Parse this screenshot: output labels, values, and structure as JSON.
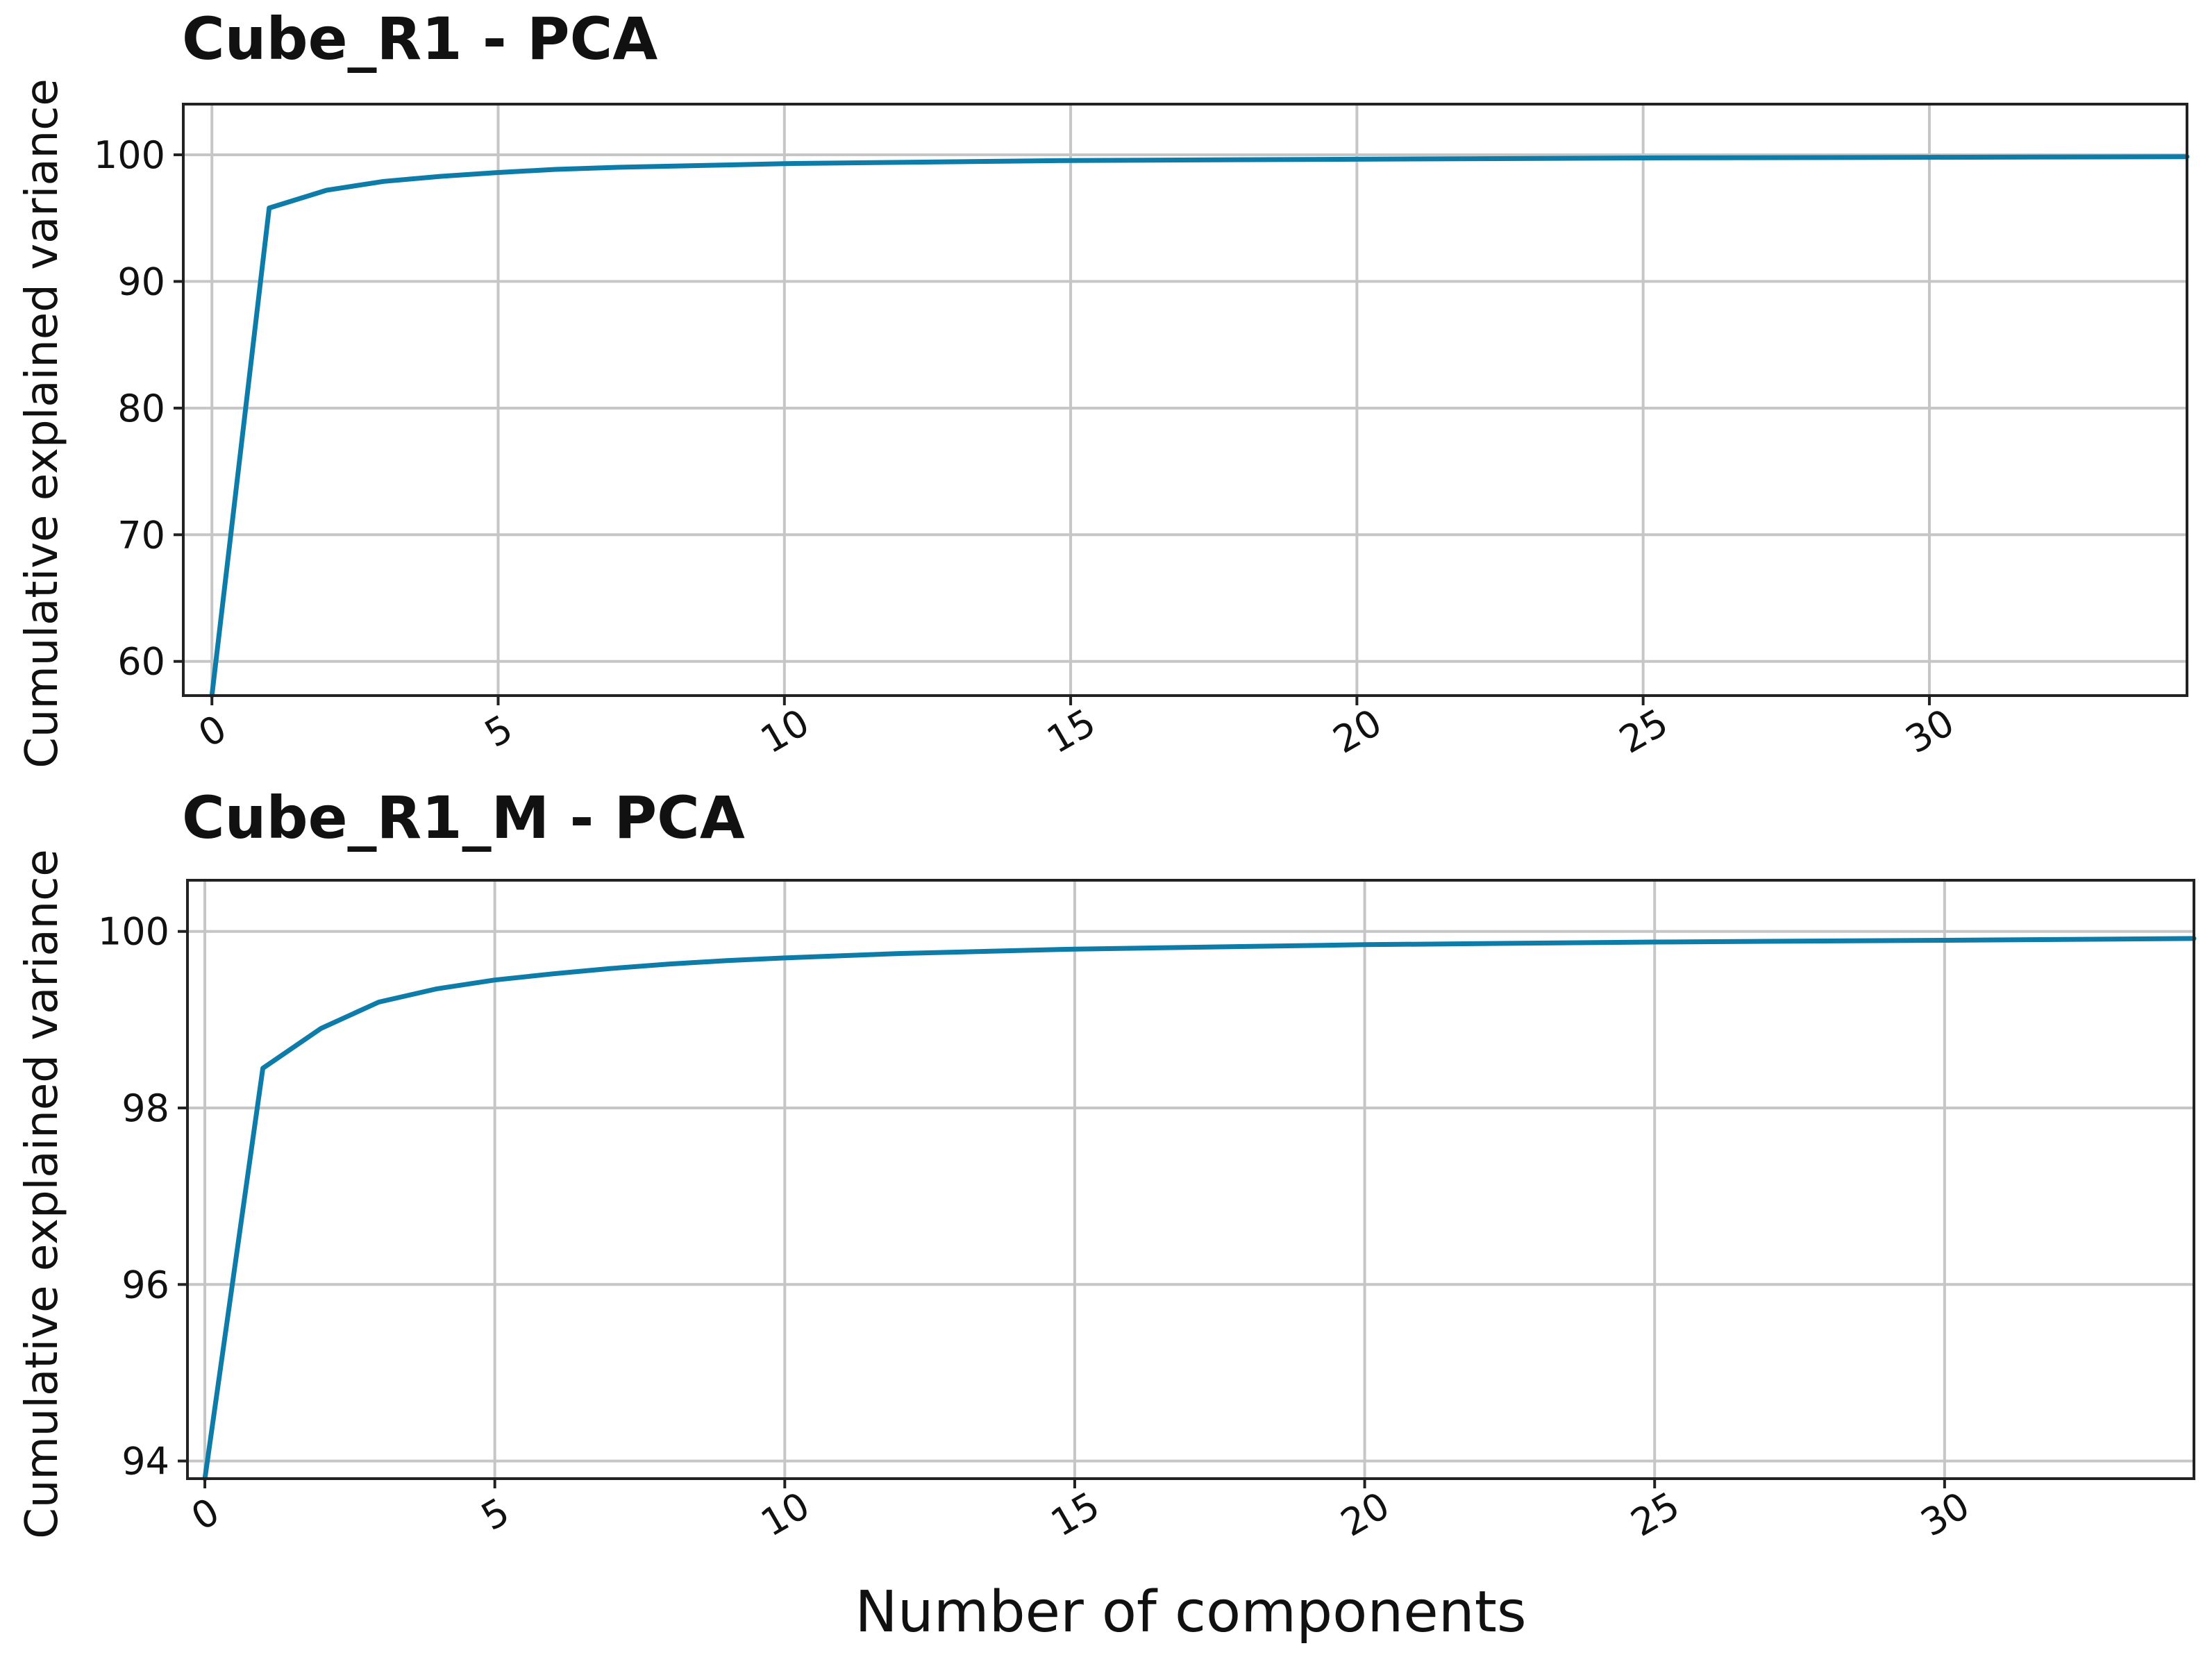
{
  "figure": {
    "xlabel": "Number of components"
  },
  "chart_data": [
    {
      "type": "line",
      "title": "Cube_R1 - PCA",
      "xlabel": "",
      "ylabel": "Cumulative explained variance",
      "xlim": [
        -0.5,
        34.5
      ],
      "ylim": [
        57.3,
        104
      ],
      "grid": true,
      "xticks": [
        0,
        5,
        10,
        15,
        20,
        25,
        30
      ],
      "yticks": [
        60,
        70,
        80,
        90,
        100
      ],
      "color": "#0e7ca8",
      "series": [
        {
          "name": "Cube_R1",
          "x": [
            0,
            1,
            2,
            3,
            4,
            5,
            6,
            7,
            8,
            9,
            10,
            12,
            15,
            20,
            25,
            30,
            34.5
          ],
          "y": [
            57.3,
            95.8,
            97.2,
            97.9,
            98.3,
            98.6,
            98.85,
            99.0,
            99.1,
            99.2,
            99.3,
            99.4,
            99.55,
            99.65,
            99.75,
            99.8,
            99.85
          ]
        }
      ]
    },
    {
      "type": "line",
      "title": "Cube_R1_M - PCA",
      "xlabel": "Number of components",
      "ylabel": "Cumulative explained variance",
      "xlim": [
        -0.3,
        34.3
      ],
      "ylim": [
        93.8,
        100.58
      ],
      "grid": true,
      "xticks": [
        0,
        5,
        10,
        15,
        20,
        25,
        30
      ],
      "yticks": [
        94,
        96,
        98,
        100
      ],
      "color": "#0e7ca8",
      "series": [
        {
          "name": "Cube_R1_M",
          "x": [
            0,
            1,
            2,
            3,
            4,
            5,
            6,
            7,
            8,
            9,
            10,
            12,
            15,
            20,
            25,
            30,
            34.3
          ],
          "y": [
            93.8,
            98.45,
            98.9,
            99.2,
            99.35,
            99.45,
            99.52,
            99.58,
            99.63,
            99.67,
            99.7,
            99.75,
            99.8,
            99.85,
            99.88,
            99.9,
            99.92
          ]
        }
      ]
    }
  ]
}
